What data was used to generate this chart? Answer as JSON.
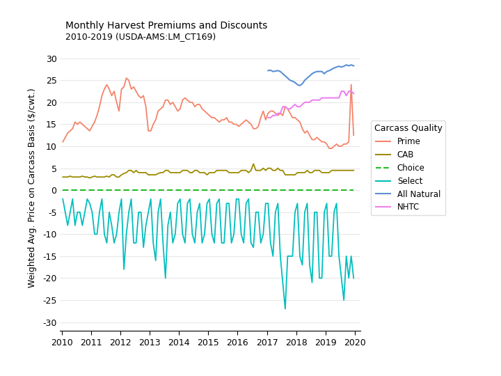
{
  "title": "Monthly Harvest Premiums and Discounts",
  "subtitle": "2010-2019 (USDA-AMS:LM_CT169)",
  "ylabel": "Weighted Avg. Price on Carcass Basis ($/cwt.)",
  "xlim": [
    2009.95,
    2020.2
  ],
  "ylim": [
    -32,
    33
  ],
  "yticks": [
    -30,
    -25,
    -20,
    -15,
    -10,
    -5,
    0,
    5,
    10,
    15,
    20,
    25,
    30
  ],
  "xticks": [
    2010,
    2011,
    2012,
    2013,
    2014,
    2015,
    2016,
    2017,
    2018,
    2019,
    2020
  ],
  "colors": {
    "Prime": "#F4846A",
    "CAB": "#9B8B00",
    "Choice": "#22BB22",
    "Select": "#00BEBE",
    "All Natural": "#5B8FD4",
    "NHTC": "#EE82EE"
  },
  "legend_title": "Carcass Quality",
  "bg_color": "#FFFFFF",
  "grid_color": "#E8E8E8"
}
